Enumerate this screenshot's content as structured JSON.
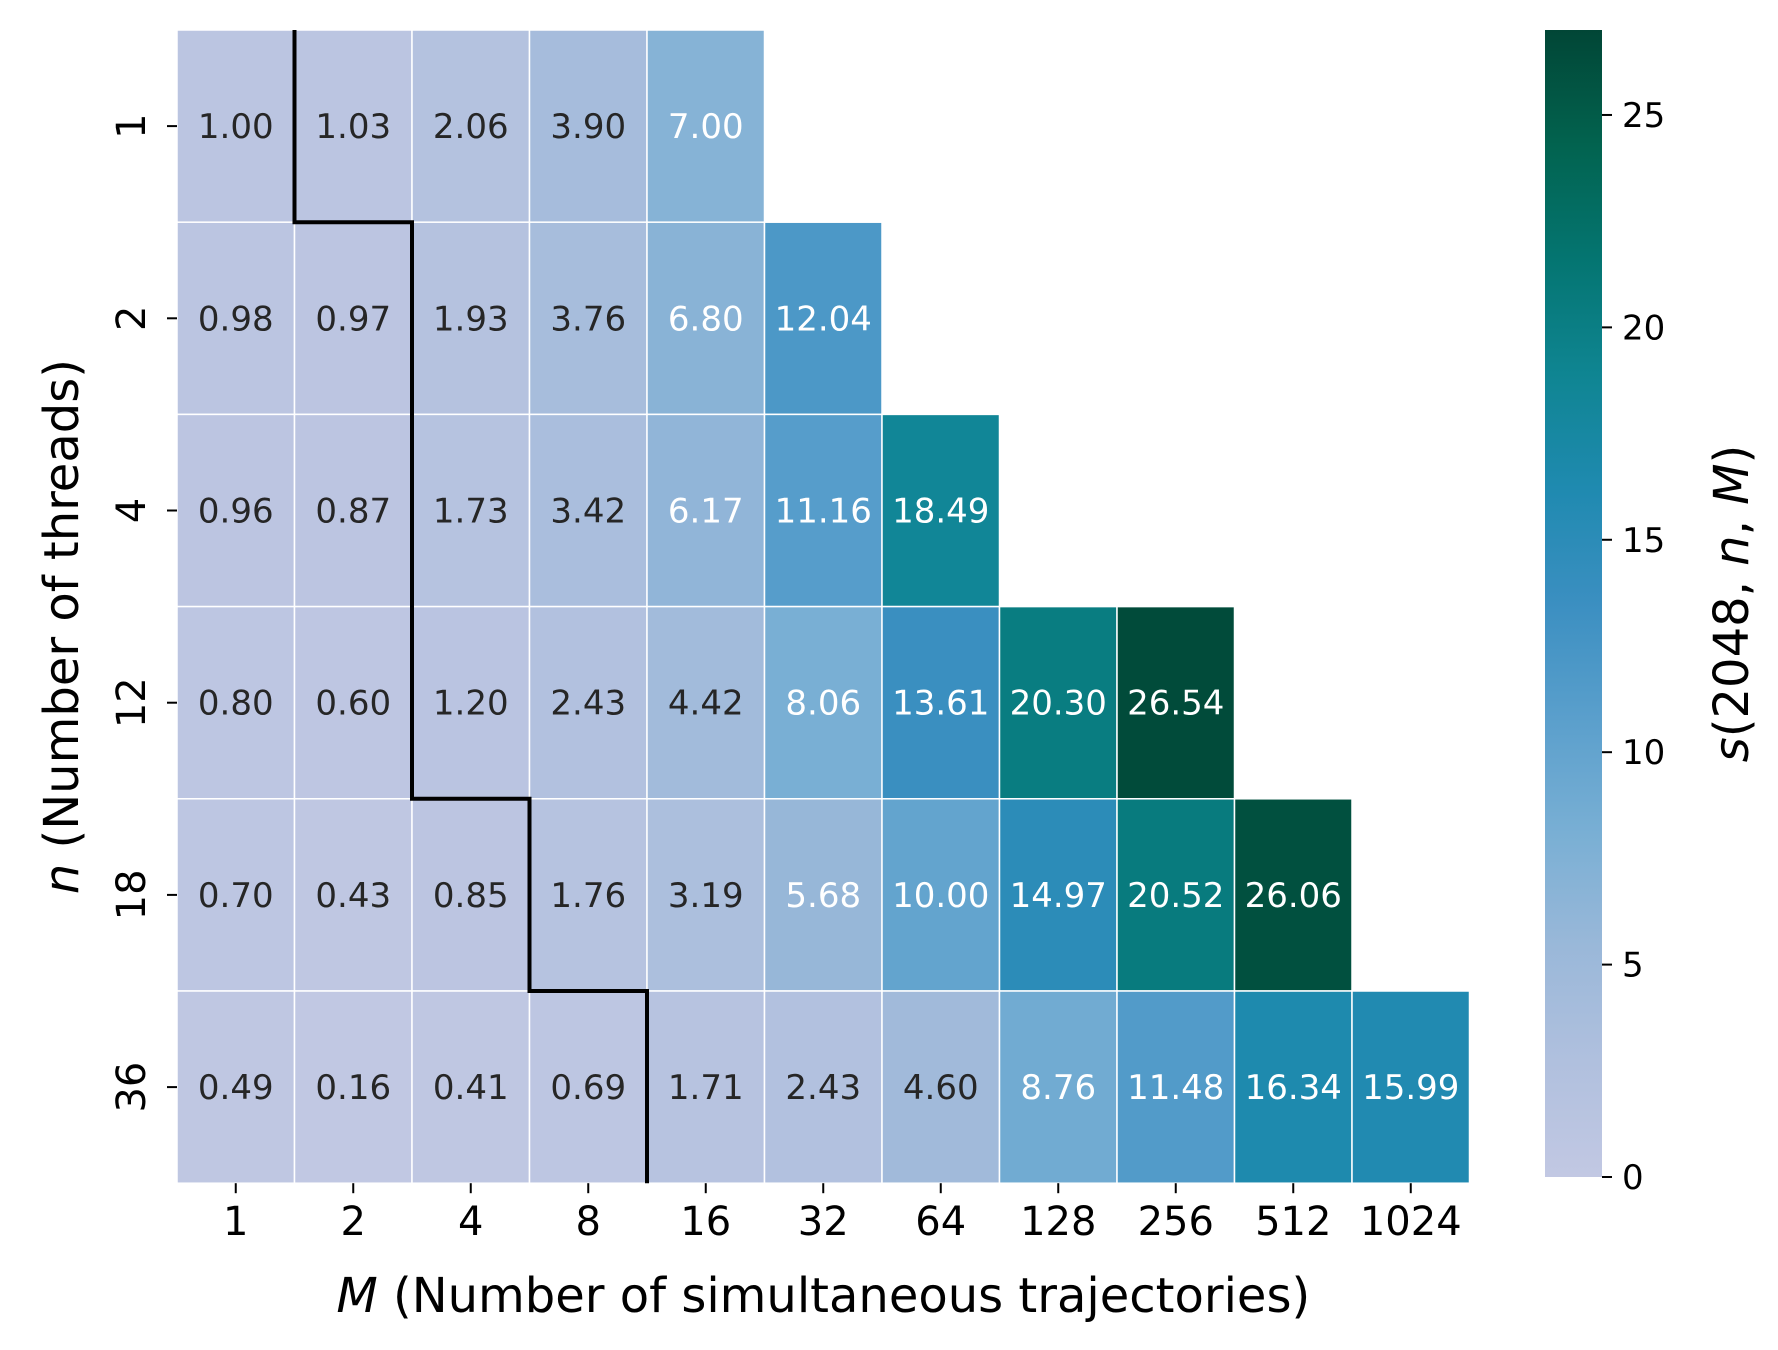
{
  "chart_data": {
    "type": "heatmap",
    "xlabel_var": "M",
    "xlabel_text": " (Number of simultaneous trajectories)",
    "ylabel_var": "n",
    "ylabel_text": " (Number of threads)",
    "colorbar_label_parts": [
      "s",
      "(2048, ",
      "n",
      ", ",
      "M",
      ")"
    ],
    "x_categories": [
      "1",
      "2",
      "4",
      "8",
      "16",
      "32",
      "64",
      "128",
      "256",
      "512",
      "1024"
    ],
    "y_categories": [
      "1",
      "2",
      "4",
      "12",
      "18",
      "36"
    ],
    "values": [
      [
        1.0,
        1.03,
        2.06,
        3.9,
        7.0,
        null,
        null,
        null,
        null,
        null,
        null
      ],
      [
        0.98,
        0.97,
        1.93,
        3.76,
        6.8,
        12.04,
        null,
        null,
        null,
        null,
        null
      ],
      [
        0.96,
        0.87,
        1.73,
        3.42,
        6.17,
        11.16,
        18.49,
        null,
        null,
        null,
        null
      ],
      [
        0.8,
        0.6,
        1.2,
        2.43,
        4.42,
        8.06,
        13.61,
        20.3,
        26.54,
        null,
        null
      ],
      [
        0.7,
        0.43,
        0.85,
        1.76,
        3.19,
        5.68,
        10.0,
        14.97,
        20.52,
        26.06,
        null
      ],
      [
        0.49,
        0.16,
        0.41,
        0.69,
        1.71,
        2.43,
        4.6,
        8.76,
        11.48,
        16.34,
        15.99
      ]
    ],
    "value_labels": [
      [
        "1.00",
        "1.03",
        "2.06",
        "3.90",
        "7.00",
        null,
        null,
        null,
        null,
        null,
        null
      ],
      [
        "0.98",
        "0.97",
        "1.93",
        "3.76",
        "6.80",
        "12.04",
        null,
        null,
        null,
        null,
        null
      ],
      [
        "0.96",
        "0.87",
        "1.73",
        "3.42",
        "6.17",
        "11.16",
        "18.49",
        null,
        null,
        null,
        null
      ],
      [
        "0.80",
        "0.60",
        "1.20",
        "2.43",
        "4.42",
        "8.06",
        "13.61",
        "20.30",
        "26.54",
        null,
        null
      ],
      [
        "0.70",
        "0.43",
        "0.85",
        "1.76",
        "3.19",
        "5.68",
        "10.00",
        "14.97",
        "20.52",
        "26.06",
        null
      ],
      [
        "0.49",
        "0.16",
        "0.41",
        "0.69",
        "1.71",
        "2.43",
        "4.60",
        "8.76",
        "11.48",
        "16.34",
        "15.99"
      ]
    ],
    "boundary_line": {
      "description_none": null,
      "cells_left_of_line_per_row": [
        1,
        2,
        2,
        2,
        3,
        4
      ],
      "color": "#000000"
    },
    "colorbar": {
      "vmin": 0,
      "vmax": 27,
      "ticks": [
        0,
        5,
        10,
        15,
        20,
        25
      ],
      "colormap": "PuBuGn",
      "colormap_stops": [
        [
          0.0,
          "#c2c8e3"
        ],
        [
          0.1,
          "#b0c0de"
        ],
        [
          0.2,
          "#9ab8d9"
        ],
        [
          0.3,
          "#79afd4"
        ],
        [
          0.4,
          "#5a9fcc"
        ],
        [
          0.5,
          "#3b8fc1"
        ],
        [
          0.6,
          "#1f8ab0"
        ],
        [
          0.7,
          "#0f8592"
        ],
        [
          0.8,
          "#047571"
        ],
        [
          0.9,
          "#02634f"
        ],
        [
          1.0,
          "#014636"
        ]
      ]
    },
    "text_color_dark": "#262626",
    "text_color_light": "#ffffff",
    "text_color_threshold": 5.5,
    "grid_line_color": "#ffffff"
  }
}
